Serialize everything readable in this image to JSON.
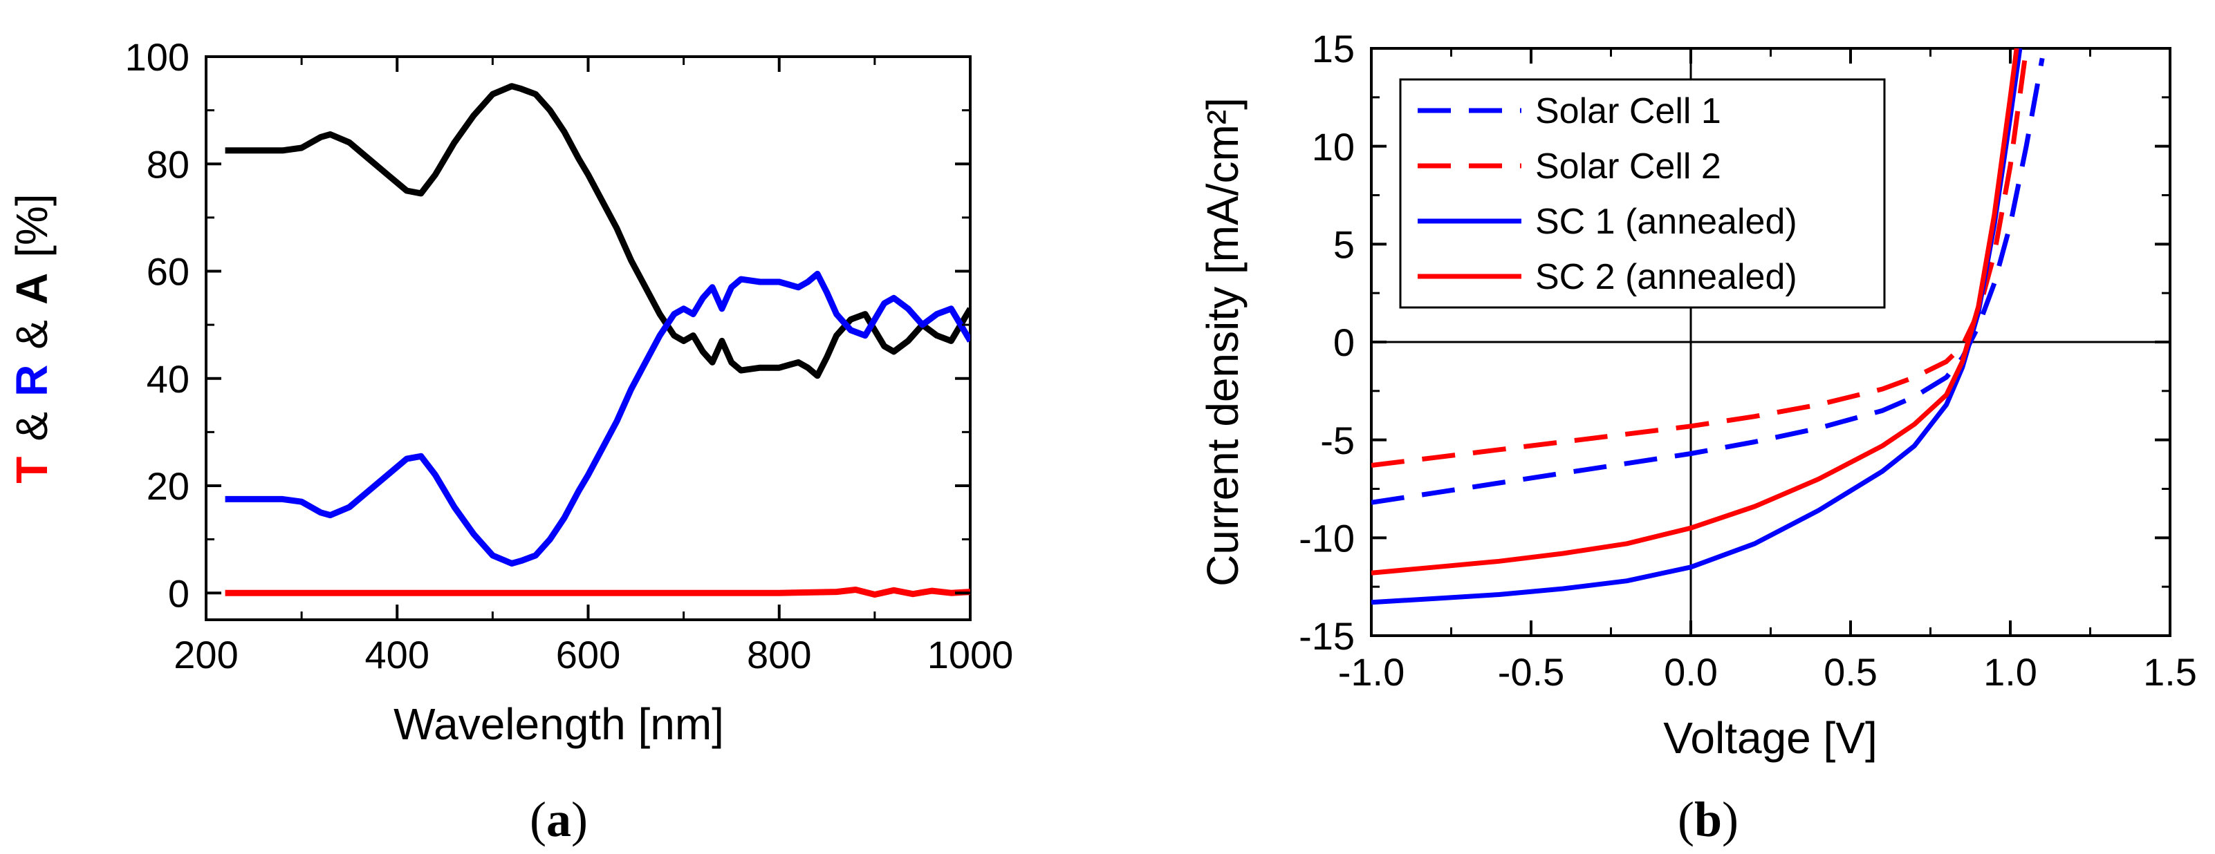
{
  "chart_data": [
    {
      "type": "line",
      "panel_label": "(a)",
      "panel_label_letter": "a",
      "xlabel": "Wavelength [nm]",
      "ylabel_parts": [
        {
          "text": "T",
          "color": "#ff0000",
          "bold": true
        },
        {
          "text": "&",
          "color": "#000000",
          "bold": false
        },
        {
          "text": "R",
          "color": "#0000ff",
          "bold": true
        },
        {
          "text": "&",
          "color": "#000000",
          "bold": false
        },
        {
          "text": "A",
          "color": "#000000",
          "bold": true
        },
        {
          "text": "[%]",
          "color": "#000000",
          "bold": false
        }
      ],
      "xlim": [
        200,
        1000
      ],
      "ylim": [
        -5,
        100
      ],
      "xticks": [
        "200",
        "400",
        "600",
        "800",
        "1000"
      ],
      "yticks": [
        "0",
        "20",
        "40",
        "60",
        "80",
        "100"
      ],
      "grid": false,
      "series": [
        {
          "color": "#000000",
          "x": [
            220,
            240,
            260,
            280,
            300,
            320,
            330,
            350,
            370,
            390,
            410,
            425,
            440,
            460,
            480,
            500,
            520,
            530,
            545,
            560,
            575,
            590,
            600,
            615,
            630,
            645,
            660,
            675,
            690,
            700,
            710,
            720,
            730,
            740,
            750,
            760,
            780,
            800,
            820,
            830,
            840,
            850,
            860,
            875,
            890,
            900,
            910,
            920,
            935,
            950,
            965,
            980,
            990,
            1000
          ],
          "y": [
            82.5,
            82.5,
            82.5,
            82.5,
            83,
            85,
            85.5,
            84,
            81,
            78,
            75,
            74.5,
            78,
            84,
            89,
            93,
            94.5,
            94,
            93,
            90,
            86,
            81,
            78,
            73,
            68,
            62,
            57,
            52,
            48,
            47,
            48,
            45,
            43,
            47,
            43,
            41.5,
            42,
            42,
            43,
            42,
            40.5,
            44,
            48,
            51,
            52,
            49,
            46,
            45,
            47,
            50,
            48,
            47,
            50,
            53
          ]
        },
        {
          "color": "#0000ff",
          "x": [
            220,
            240,
            260,
            280,
            300,
            320,
            330,
            350,
            370,
            390,
            410,
            425,
            440,
            460,
            480,
            500,
            520,
            530,
            545,
            560,
            575,
            590,
            600,
            615,
            630,
            645,
            660,
            675,
            690,
            700,
            710,
            720,
            730,
            740,
            750,
            760,
            780,
            800,
            820,
            830,
            840,
            850,
            860,
            875,
            890,
            900,
            910,
            920,
            935,
            950,
            965,
            980,
            990,
            1000
          ],
          "y": [
            17.5,
            17.5,
            17.5,
            17.5,
            17,
            15,
            14.5,
            16,
            19,
            22,
            25,
            25.5,
            22,
            16,
            11,
            7,
            5.5,
            6,
            7,
            10,
            14,
            19,
            22,
            27,
            32,
            38,
            43,
            48,
            52,
            53,
            52,
            55,
            57,
            53,
            57,
            58.5,
            58,
            58,
            57,
            58,
            59.5,
            56,
            52,
            49,
            48,
            51,
            54,
            55,
            53,
            50,
            52,
            53,
            50,
            47
          ]
        },
        {
          "color": "#ff0000",
          "x": [
            220,
            300,
            400,
            500,
            600,
            700,
            800,
            860,
            880,
            900,
            920,
            940,
            960,
            980,
            1000
          ],
          "y": [
            0,
            0,
            0,
            0,
            0,
            0,
            0,
            0.2,
            0.6,
            -0.3,
            0.5,
            -0.2,
            0.4,
            0,
            0.2
          ]
        }
      ]
    },
    {
      "type": "line",
      "panel_label": "(b)",
      "panel_label_letter": "b",
      "xlabel": "Voltage [V]",
      "ylabel": "Current density [mA/cm²]",
      "xlim": [
        -1.0,
        1.5
      ],
      "ylim": [
        -15,
        15
      ],
      "xticks": [
        "-1.0",
        "-0.5",
        "0.0",
        "0.5",
        "1.0",
        "1.5"
      ],
      "yticks": [
        "-15",
        "-10",
        "-5",
        "0",
        "5",
        "10",
        "15"
      ],
      "grid": false,
      "legend": "top-left",
      "series": [
        {
          "name": "Solar Cell 1",
          "color": "#0000ff",
          "dash": "dashed",
          "x": [
            -1.0,
            -0.8,
            -0.6,
            -0.4,
            -0.2,
            0.0,
            0.2,
            0.4,
            0.6,
            0.7,
            0.8,
            0.85,
            0.9,
            0.95,
            1.0,
            1.05,
            1.1
          ],
          "y": [
            -8.2,
            -7.7,
            -7.2,
            -6.7,
            -6.2,
            -5.7,
            -5.1,
            -4.4,
            -3.5,
            -2.8,
            -1.8,
            -0.8,
            0.8,
            3.0,
            6.0,
            10.0,
            14.5
          ]
        },
        {
          "name": "Solar Cell 2",
          "color": "#ff0000",
          "dash": "dashed",
          "x": [
            -1.0,
            -0.8,
            -0.6,
            -0.4,
            -0.2,
            0.0,
            0.2,
            0.4,
            0.6,
            0.7,
            0.8,
            0.85,
            0.9,
            0.95,
            1.0,
            1.05
          ],
          "y": [
            -6.3,
            -5.9,
            -5.5,
            -5.1,
            -4.7,
            -4.3,
            -3.8,
            -3.2,
            -2.4,
            -1.8,
            -1.0,
            -0.2,
            1.5,
            4.5,
            9.0,
            15.0
          ]
        },
        {
          "name": "SC 1 (annealed)",
          "color": "#0000ff",
          "dash": "solid",
          "x": [
            -1.0,
            -0.8,
            -0.6,
            -0.4,
            -0.2,
            0.0,
            0.2,
            0.4,
            0.6,
            0.7,
            0.8,
            0.85,
            0.9,
            0.95,
            1.0,
            1.03
          ],
          "y": [
            -13.3,
            -13.1,
            -12.9,
            -12.6,
            -12.2,
            -11.5,
            -10.3,
            -8.6,
            -6.6,
            -5.3,
            -3.2,
            -1.3,
            1.5,
            6.0,
            11.5,
            15.0
          ]
        },
        {
          "name": "SC 2 (annealed)",
          "color": "#ff0000",
          "dash": "solid",
          "x": [
            -1.0,
            -0.8,
            -0.6,
            -0.4,
            -0.2,
            0.0,
            0.2,
            0.4,
            0.6,
            0.7,
            0.8,
            0.85,
            0.9,
            0.95,
            1.0,
            1.02
          ],
          "y": [
            -11.8,
            -11.5,
            -11.2,
            -10.8,
            -10.3,
            -9.5,
            -8.4,
            -7.0,
            -5.3,
            -4.2,
            -2.7,
            -1.0,
            1.8,
            6.5,
            12.5,
            15.0
          ]
        }
      ]
    }
  ]
}
